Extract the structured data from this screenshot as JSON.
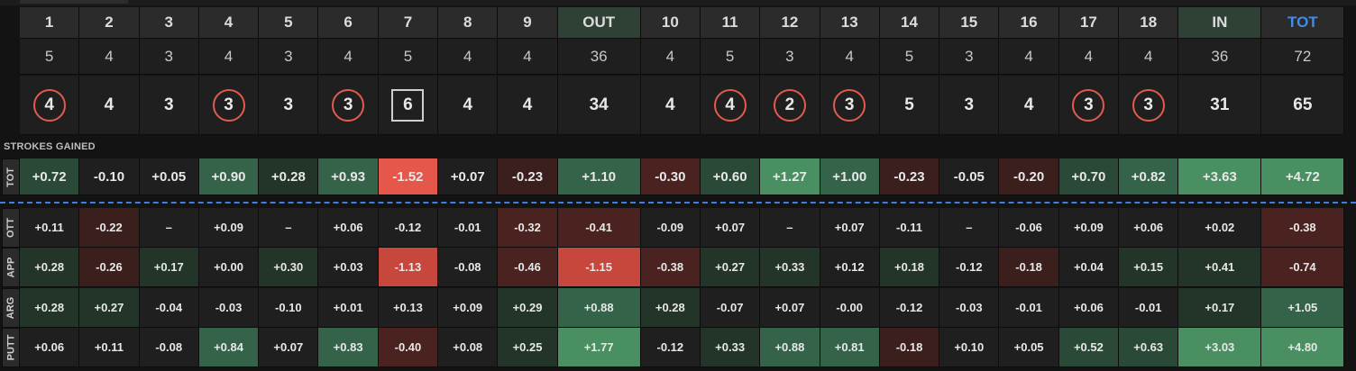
{
  "holes": [
    "1",
    "2",
    "3",
    "4",
    "5",
    "6",
    "7",
    "8",
    "9",
    "OUT",
    "10",
    "11",
    "12",
    "13",
    "14",
    "15",
    "16",
    "17",
    "18",
    "IN",
    "TOT"
  ],
  "par": [
    "5",
    "4",
    "3",
    "4",
    "3",
    "4",
    "5",
    "4",
    "4",
    "36",
    "4",
    "5",
    "3",
    "4",
    "5",
    "3",
    "4",
    "4",
    "4",
    "36",
    "72"
  ],
  "score": [
    {
      "v": "4",
      "mark": "circle"
    },
    {
      "v": "4",
      "mark": ""
    },
    {
      "v": "3",
      "mark": ""
    },
    {
      "v": "3",
      "mark": "circle"
    },
    {
      "v": "3",
      "mark": ""
    },
    {
      "v": "3",
      "mark": "circle"
    },
    {
      "v": "6",
      "mark": "square"
    },
    {
      "v": "4",
      "mark": ""
    },
    {
      "v": "4",
      "mark": ""
    },
    {
      "v": "34",
      "mark": ""
    },
    {
      "v": "4",
      "mark": ""
    },
    {
      "v": "4",
      "mark": "circle"
    },
    {
      "v": "2",
      "mark": "circle"
    },
    {
      "v": "3",
      "mark": "circle"
    },
    {
      "v": "5",
      "mark": ""
    },
    {
      "v": "3",
      "mark": ""
    },
    {
      "v": "4",
      "mark": ""
    },
    {
      "v": "3",
      "mark": "circle"
    },
    {
      "v": "3",
      "mark": "circle"
    },
    {
      "v": "31",
      "mark": ""
    },
    {
      "v": "65",
      "mark": ""
    }
  ],
  "strokes_gained_label": "STROKES GAINED",
  "sg_rows": [
    {
      "label": "TOT",
      "values": [
        "+0.72",
        "-0.10",
        "+0.05",
        "+0.90",
        "+0.28",
        "+0.93",
        "-1.52",
        "+0.07",
        "-0.23",
        "+1.10",
        "-0.30",
        "+0.60",
        "+1.27",
        "+1.00",
        "-0.23",
        "-0.05",
        "-0.20",
        "+0.70",
        "+0.82",
        "+3.63",
        "+4.72"
      ]
    },
    {
      "label": "OTT",
      "values": [
        "+0.11",
        "-0.22",
        "–",
        "+0.09",
        "–",
        "+0.06",
        "-0.12",
        "-0.01",
        "-0.32",
        "-0.41",
        "-0.09",
        "+0.07",
        "–",
        "+0.07",
        "-0.11",
        "–",
        "-0.06",
        "+0.09",
        "+0.06",
        "+0.02",
        "-0.38"
      ]
    },
    {
      "label": "APP",
      "values": [
        "+0.28",
        "-0.26",
        "+0.17",
        "+0.00",
        "+0.30",
        "+0.03",
        "-1.13",
        "-0.08",
        "-0.46",
        "-1.15",
        "-0.38",
        "+0.27",
        "+0.33",
        "+0.12",
        "+0.18",
        "-0.12",
        "-0.18",
        "+0.04",
        "+0.15",
        "+0.41",
        "-0.74"
      ]
    },
    {
      "label": "ARG",
      "values": [
        "+0.28",
        "+0.27",
        "-0.04",
        "-0.03",
        "-0.10",
        "+0.01",
        "+0.13",
        "+0.09",
        "+0.29",
        "+0.88",
        "+0.28",
        "-0.07",
        "+0.07",
        "-0.00",
        "-0.12",
        "-0.03",
        "-0.01",
        "+0.06",
        "-0.01",
        "+0.17",
        "+1.05"
      ]
    },
    {
      "label": "PUTT",
      "values": [
        "+0.06",
        "+0.11",
        "-0.08",
        "+0.84",
        "+0.07",
        "+0.83",
        "-0.40",
        "+0.08",
        "+0.25",
        "+1.77",
        "-0.12",
        "+0.33",
        "+0.88",
        "+0.81",
        "-0.18",
        "+0.10",
        "+0.05",
        "+0.52",
        "+0.63",
        "+3.03",
        "+4.80"
      ]
    }
  ],
  "colors": {
    "positive": "#2f6b48",
    "negative": "#6a2a25",
    "strong_negative": "#e4574a",
    "tot_header": "#3f8cf0"
  }
}
